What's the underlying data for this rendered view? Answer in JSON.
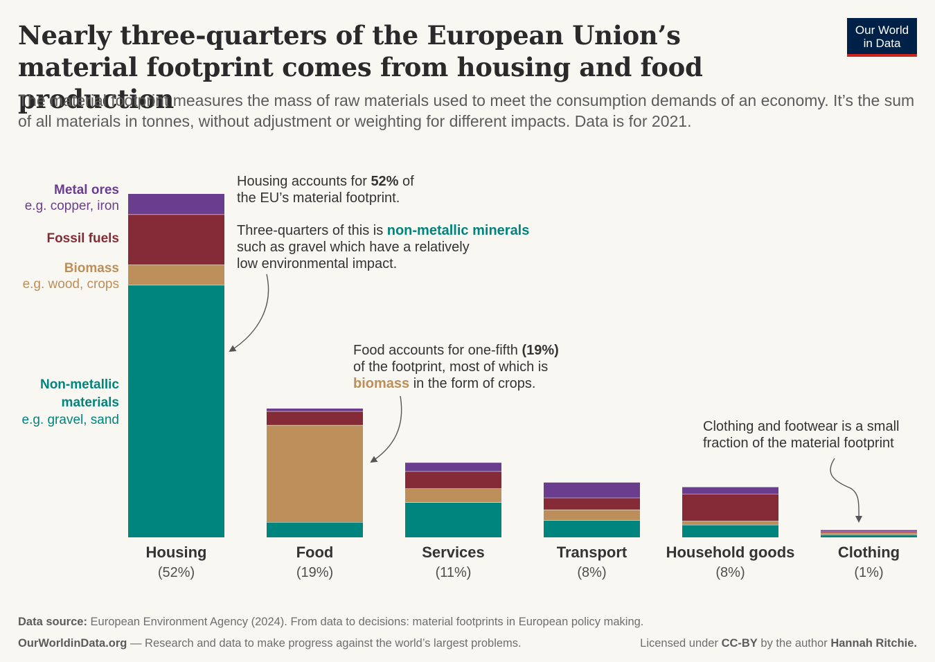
{
  "header": {
    "title": "Nearly three-quarters of the European Union’s material footprint comes from housing and food production",
    "subtitle": "The material footprint measures the mass of raw materials used to meet the consumption demands of an economy. It’s the sum of all materials in tonnes, without adjustment or weighting for different impacts. Data is for 2021.",
    "logo_line1": "Our World",
    "logo_line2": "in Data"
  },
  "colors": {
    "metal_ores": "#6b3d8e",
    "fossil_fuels": "#852b37",
    "biomass": "#bc8e5a",
    "non_metallic": "#00847e",
    "text": "#4d4d4d"
  },
  "chart_data": {
    "type": "bar",
    "stacked": true,
    "title": "Nearly three-quarters of the European Union’s material footprint comes from housing and food production",
    "xlabel": "",
    "ylabel": "",
    "grid": false,
    "categories": [
      "Housing",
      "Food",
      "Services",
      "Transport",
      "Household goods",
      "Clothing"
    ],
    "category_labels": [
      "(52%)",
      "(19%)",
      "(11%)",
      "(8%)",
      "(8%)",
      "(1%)"
    ],
    "ylim": [
      0,
      52
    ],
    "series": [
      {
        "name": "Non-metallic materials",
        "key": "non_metallic",
        "values": [
          38.2,
          2.3,
          5.3,
          2.6,
          1.9,
          0.4
        ]
      },
      {
        "name": "Biomass",
        "key": "biomass",
        "values": [
          3.1,
          14.7,
          2.1,
          1.6,
          0.6,
          0.3
        ]
      },
      {
        "name": "Fossil fuels",
        "key": "fossil_fuels",
        "values": [
          7.6,
          2.1,
          2.6,
          1.8,
          4.1,
          0.2
        ]
      },
      {
        "name": "Metal ores",
        "key": "metal_ores",
        "values": [
          3.1,
          0.4,
          1.3,
          2.3,
          1.0,
          0.2
        ]
      }
    ],
    "legend": [
      {
        "name": "Metal ores",
        "desc": "e.g. copper, iron",
        "key": "metal_ores"
      },
      {
        "name": "Fossil fuels",
        "desc": "",
        "key": "fossil_fuels"
      },
      {
        "name": "Biomass",
        "desc": "e.g. wood, crops",
        "key": "biomass"
      },
      {
        "name": "Non-metallic",
        "name2": "materials",
        "desc": "e.g. gravel, sand",
        "key": "non_metallic"
      }
    ],
    "annotations": {
      "housing_1a": "Housing accounts for ",
      "housing_1b": "52%",
      "housing_1c": " of",
      "housing_2": "the EU’s material footprint.",
      "housing_3a": "Three-quarters of this is ",
      "housing_3b": "non-metallic minerals",
      "housing_4": "such as gravel which have a relatively",
      "housing_5": "low environmental impact.",
      "food_1a": "Food accounts for one-fifth ",
      "food_1b": "(19%)",
      "food_2": "of the footprint, most of which is",
      "food_3a": "biomass",
      "food_3b": " in the form of crops.",
      "clothing_1": "Clothing and footwear is a small",
      "clothing_2": "fraction of the material footprint"
    }
  },
  "footer": {
    "source_label": "Data source:",
    "source_text": " European Environment Agency (2024). From data to decisions: material footprints in European policy making.",
    "site": "OurWorldinData.org",
    "tagline": " — Research and data to make progress against the world’s largest problems.",
    "license_a": "Licensed under ",
    "license_b": "CC-BY",
    "license_c": " by the author ",
    "author": "Hannah Ritchie."
  }
}
